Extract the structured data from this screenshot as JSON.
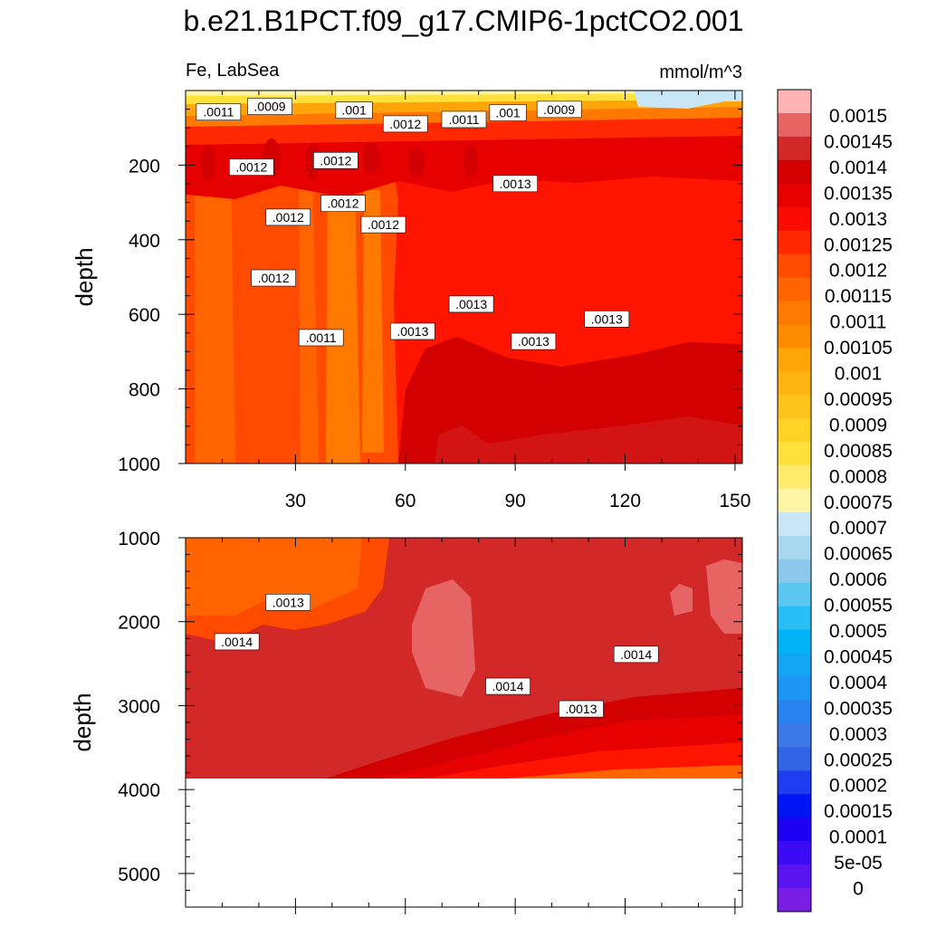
{
  "chart_data": [
    {
      "type": "contour",
      "panel": "upper",
      "title": "b.e21.B1PCT.f09_g17.CMIP6-1pctCO2.001",
      "left_string": "Fe, LabSea",
      "right_string": "mmol/m^3",
      "xlabel": "",
      "ylabel": "depth",
      "xlim": [
        0,
        152
      ],
      "ylim": [
        0,
        1000
      ],
      "x_ticks": [
        30,
        60,
        90,
        120,
        150
      ],
      "y_ticks": [
        200,
        400,
        600,
        800,
        1000
      ],
      "contour_labels": [
        {
          "text": ".0011",
          "x": 9,
          "y": 60
        },
        {
          "text": ".0009",
          "x": 23,
          "y": 45
        },
        {
          "text": ".001",
          "x": 46,
          "y": 55
        },
        {
          "text": ".0012",
          "x": 60,
          "y": 92
        },
        {
          "text": ".0011",
          "x": 76,
          "y": 80
        },
        {
          "text": ".001",
          "x": 88,
          "y": 62
        },
        {
          "text": ".0009",
          "x": 102,
          "y": 53
        },
        {
          "text": ".0012",
          "x": 18,
          "y": 208
        },
        {
          "text": ".0012",
          "x": 41,
          "y": 190
        },
        {
          "text": ".0013",
          "x": 90,
          "y": 252
        },
        {
          "text": ".0012",
          "x": 28,
          "y": 342
        },
        {
          "text": ".0012",
          "x": 43,
          "y": 305
        },
        {
          "text": ".0012",
          "x": 54,
          "y": 362
        },
        {
          "text": ".0012",
          "x": 24,
          "y": 505
        },
        {
          "text": ".0013",
          "x": 78,
          "y": 575
        },
        {
          "text": ".0013",
          "x": 115,
          "y": 615
        },
        {
          "text": ".0011",
          "x": 37,
          "y": 665
        },
        {
          "text": ".0013",
          "x": 62,
          "y": 648
        },
        {
          "text": ".0013",
          "x": 95,
          "y": 675
        }
      ]
    },
    {
      "type": "contour",
      "panel": "lower",
      "xlabel": "",
      "ylabel": "depth",
      "xlim": [
        0,
        152
      ],
      "ylim": [
        1000,
        5400
      ],
      "y_ticks": [
        1000,
        2000,
        3000,
        4000,
        5000
      ],
      "contour_labels": [
        {
          "text": ".0013",
          "x": 28,
          "y": 1780
        },
        {
          "text": ".0014",
          "x": 14,
          "y": 2250
        },
        {
          "text": ".0014",
          "x": 123,
          "y": 2400
        },
        {
          "text": ".0014",
          "x": 88,
          "y": 2780
        },
        {
          "text": ".0013",
          "x": 108,
          "y": 3050
        }
      ]
    }
  ],
  "colorbar": {
    "colors": [
      "#7a1ee6",
      "#5a14f0",
      "#3c0af5",
      "#1e00f5",
      "#0014f5",
      "#1e3cf0",
      "#3264e6",
      "#3c78e6",
      "#2882f0",
      "#1e96f5",
      "#14a5f5",
      "#00b4f5",
      "#28bef5",
      "#5ac8f0",
      "#8cc8ec",
      "#a8d8f0",
      "#c8e6f5",
      "#fff5a5",
      "#ffeb6e",
      "#ffe13c",
      "#ffd228",
      "#ffc31e",
      "#ffb414",
      "#ffa50a",
      "#ff8c00",
      "#ff7800",
      "#ff6400",
      "#ff4b00",
      "#ff2800",
      "#fa0a00",
      "#e60000",
      "#d20000",
      "#d22828",
      "#e66464",
      "#ffb4b4"
    ],
    "labels": [
      "0.0015",
      "0.00145",
      "0.0014",
      "0.00135",
      "0.0013",
      "0.00125",
      "0.0012",
      "0.00115",
      "0.0011",
      "0.00105",
      "0.001",
      "0.00095",
      "0.0009",
      "0.00085",
      "0.0008",
      "0.00075",
      "0.0007",
      "0.00065",
      "0.0006",
      "0.00055",
      "0.0005",
      "0.00045",
      "0.0004",
      "0.00035",
      "0.0003",
      "0.00025",
      "0.0002",
      "0.00015",
      "0.0001",
      "5e-05",
      "0"
    ]
  }
}
